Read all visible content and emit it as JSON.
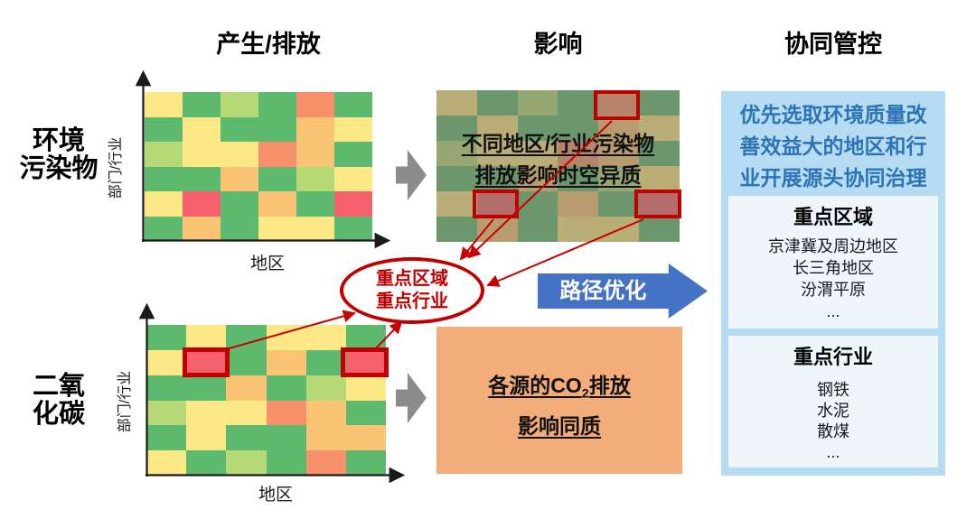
{
  "figure": {
    "column_headers": {
      "generation": "产生/排放",
      "impact": "影响",
      "control": "协同管控"
    },
    "row_labels": {
      "pollutants": [
        "环境",
        "污染物"
      ],
      "co2": [
        "二氧",
        "化碳"
      ]
    }
  },
  "axes": {
    "y_label": "部门/行业",
    "x_label": "地区"
  },
  "heatmaps": {
    "palette": {
      "g": "#5cb96e",
      "lg": "#b6d977",
      "y": "#fde886",
      "o": "#fbc374",
      "s": "#f8906b",
      "r": "#f4616c"
    },
    "pollutant_grid": [
      [
        "y",
        "g",
        "lg",
        "g",
        "s",
        "g"
      ],
      [
        "g",
        "y",
        "g",
        "g",
        "o",
        "y"
      ],
      [
        "lg",
        "y",
        "y",
        "s",
        "o",
        "g"
      ],
      [
        "g",
        "g",
        "o",
        "g",
        "lg",
        "y"
      ],
      [
        "y",
        "r",
        "g",
        "o",
        "g",
        "r"
      ],
      [
        "g",
        "o",
        "g",
        "y",
        "y",
        "g"
      ]
    ],
    "co2_grid": [
      [
        "g",
        "y",
        "g",
        "y",
        "y",
        "g"
      ],
      [
        "y",
        "r",
        "g",
        "o",
        "g",
        "r"
      ],
      [
        "g",
        "g",
        "o",
        "g",
        "lg",
        "y"
      ],
      [
        "lg",
        "y",
        "y",
        "s",
        "o",
        "g"
      ],
      [
        "g",
        "y",
        "g",
        "g",
        "o",
        "o"
      ],
      [
        "y",
        "g",
        "lg",
        "g",
        "s",
        "g"
      ]
    ]
  },
  "impact_pollutants_note": {
    "line1": "不同地区/行业污染物",
    "line2": "排放影响时空异质"
  },
  "impact_co2_note": {
    "line1_pre": "各源的CO",
    "line1_sub": "2",
    "line1_post": "排放",
    "line2": "影响同质"
  },
  "hotspot_ellipse": {
    "line1": "重点区域",
    "line2": "重点行业"
  },
  "path_arrow": {
    "label": "路径优化"
  },
  "panel": {
    "intro": "优先选取环境质量改善效益大的地区和行业开展源头协同治理",
    "regions": {
      "title": "重点区域",
      "items": [
        "京津冀及周边地区",
        "长三角地区",
        "汾渭平原",
        "..."
      ]
    },
    "industries": {
      "title": "重点行业",
      "items": [
        "钢铁",
        "水泥",
        "散煤",
        "..."
      ]
    }
  },
  "colors": {
    "highlight_red": "#c00000",
    "connector_red": "#c80000",
    "flow_arrow_blue": "#4472c4",
    "panel_bg": "#b5dcf2",
    "panel_inner_bg": "#eef6fc",
    "panel_text_blue": "#2e74b5",
    "co2_box_orange": "#f3ad7b",
    "gray_arrow": "#8b8b8b",
    "axis_black": "#1a1a1a"
  }
}
